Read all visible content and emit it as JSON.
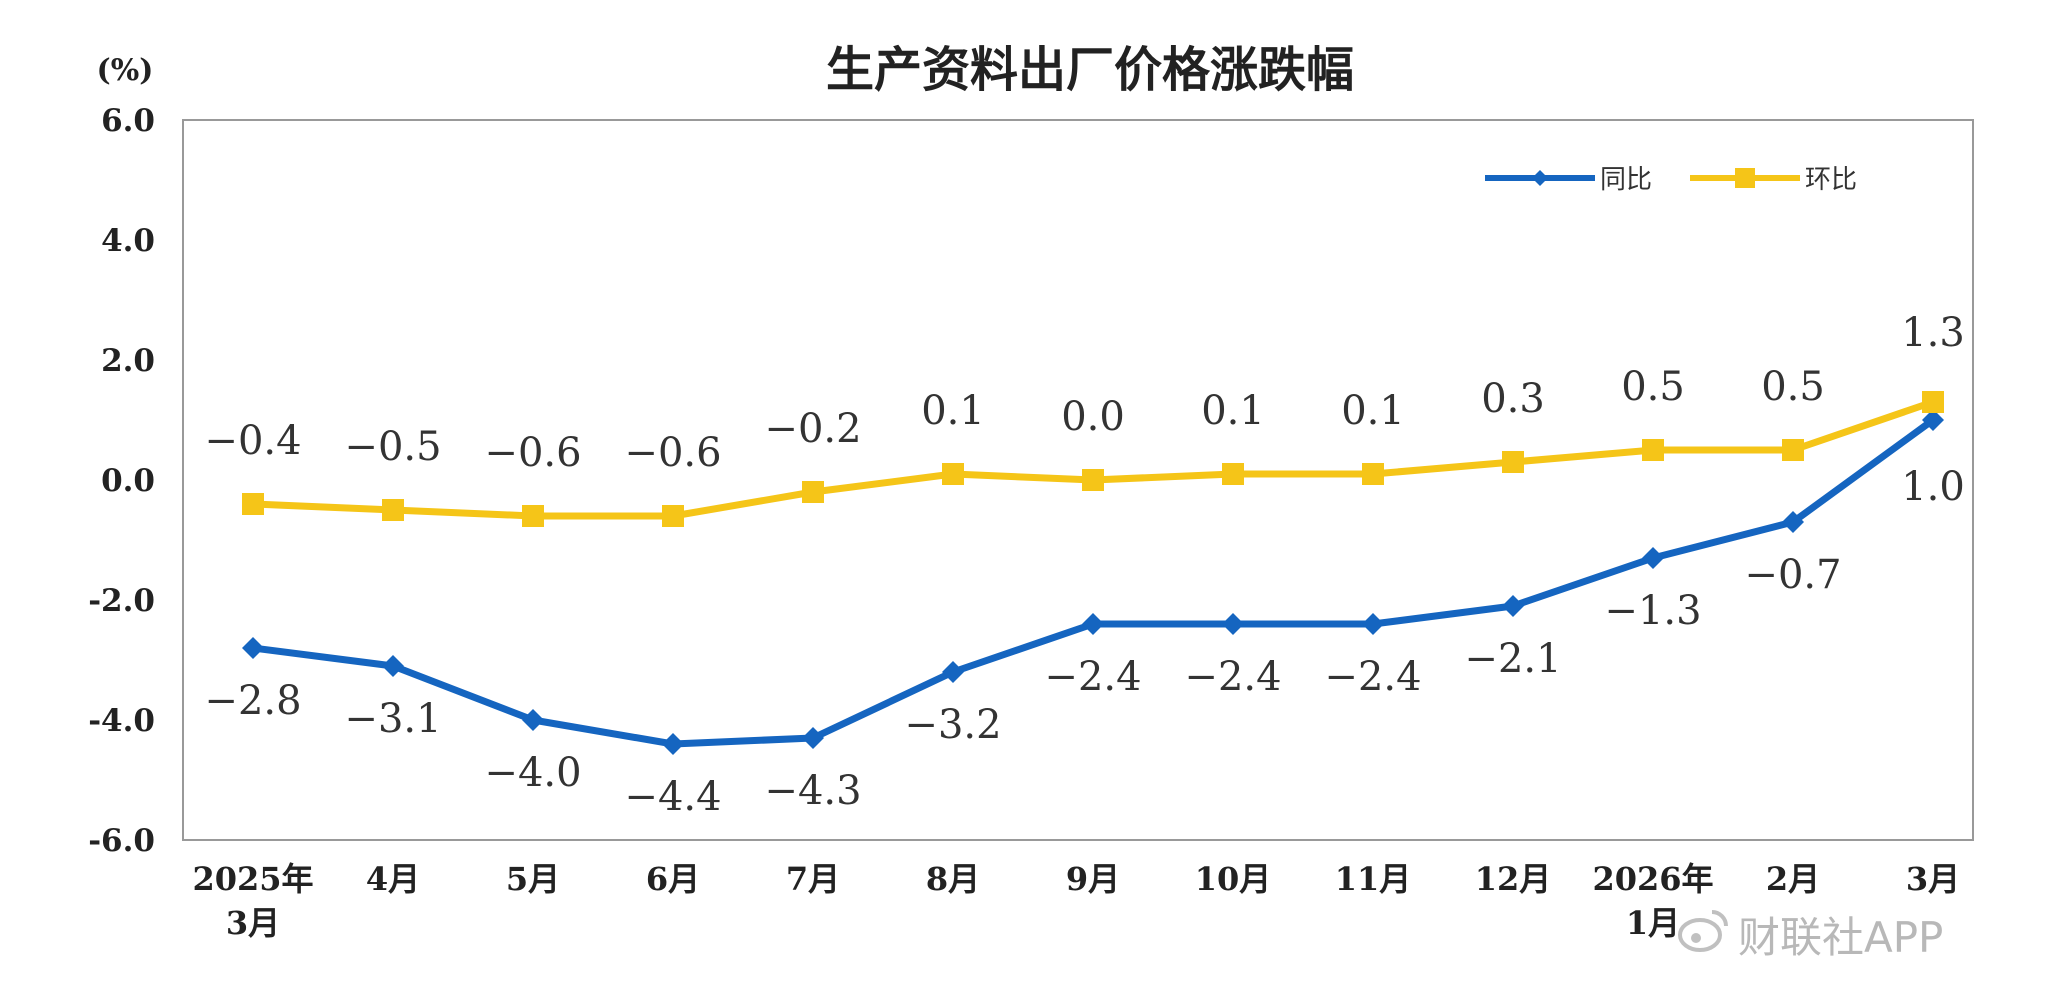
{
  "chart_data": {
    "type": "line",
    "title": "生产资料出厂价格涨跌幅",
    "unit_label": "(%)",
    "ylim": [
      -6.0,
      6.0
    ],
    "yticks": [
      "6.0",
      "4.0",
      "2.0",
      "0.0",
      "-2.0",
      "-4.0",
      "-6.0"
    ],
    "ytick_values": [
      6,
      4,
      2,
      0,
      -2,
      -4,
      -6
    ],
    "categories": [
      [
        "2025年",
        "3月"
      ],
      [
        "4月"
      ],
      [
        "5月"
      ],
      [
        "6月"
      ],
      [
        "7月"
      ],
      [
        "8月"
      ],
      [
        "9月"
      ],
      [
        "10月"
      ],
      [
        "11月"
      ],
      [
        "12月"
      ],
      [
        "2026年",
        "1月"
      ],
      [
        "2月"
      ],
      [
        "3月"
      ]
    ],
    "series": [
      {
        "name": "同比",
        "color": "#1565c0",
        "marker": "diamond",
        "values": [
          -2.8,
          -3.1,
          -4.0,
          -4.4,
          -4.3,
          -3.2,
          -2.4,
          -2.4,
          -2.4,
          -2.1,
          -1.3,
          -0.7,
          1.0
        ],
        "labels": [
          "−2.8",
          "−3.1",
          "−4.0",
          "−4.4",
          "−4.3",
          "−3.2",
          "−2.4",
          "−2.4",
          "−2.4",
          "−2.1",
          "−1.3",
          "−0.7",
          "1.0"
        ]
      },
      {
        "name": "环比",
        "color": "#f5c518",
        "marker": "square",
        "values": [
          -0.4,
          -0.5,
          -0.6,
          -0.6,
          -0.2,
          0.1,
          0.0,
          0.1,
          0.1,
          0.3,
          0.5,
          0.5,
          1.3
        ],
        "labels": [
          "−0.4",
          "−0.5",
          "−0.6",
          "−0.6",
          "−0.2",
          "0.1",
          "0.0",
          "0.1",
          "0.1",
          "0.3",
          "0.5",
          "0.5",
          "1.3"
        ]
      }
    ],
    "legend_position": "top-right",
    "grid": false
  },
  "watermark": {
    "text": "财联社APP",
    "icon": "weibo-icon"
  }
}
